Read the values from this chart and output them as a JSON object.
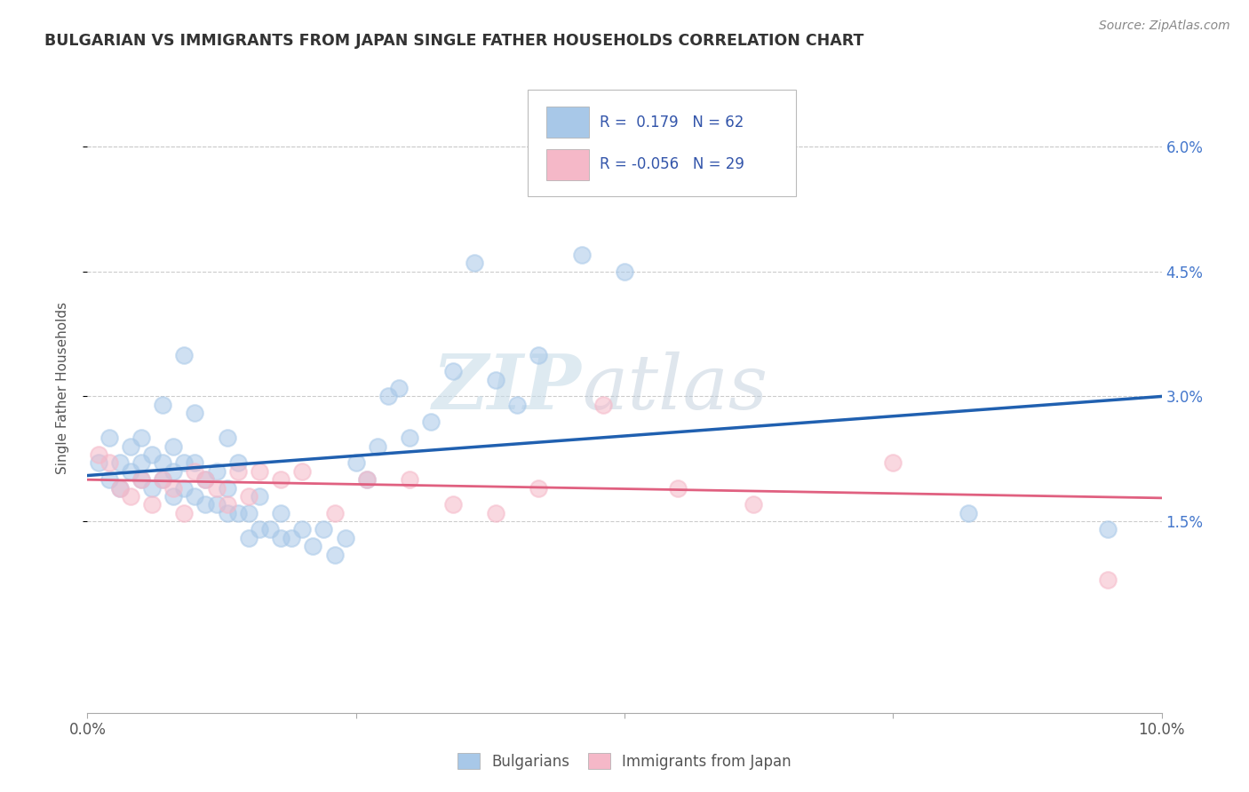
{
  "title": "BULGARIAN VS IMMIGRANTS FROM JAPAN SINGLE FATHER HOUSEHOLDS CORRELATION CHART",
  "source": "Source: ZipAtlas.com",
  "ylabel": "Single Father Households",
  "ytick_labels": [
    "1.5%",
    "3.0%",
    "4.5%",
    "6.0%"
  ],
  "ytick_values": [
    0.015,
    0.03,
    0.045,
    0.06
  ],
  "xlim": [
    0.0,
    0.1
  ],
  "ylim": [
    -0.008,
    0.07
  ],
  "legend_blue_R": "0.179",
  "legend_blue_N": "62",
  "legend_pink_R": "-0.056",
  "legend_pink_N": "29",
  "blue_color": "#a8c8e8",
  "pink_color": "#f5b8c8",
  "blue_line_color": "#2060b0",
  "pink_line_color": "#e06080",
  "watermark_zip": "ZIP",
  "watermark_atlas": "atlas",
  "blue_scatter_x": [
    0.001,
    0.002,
    0.002,
    0.003,
    0.003,
    0.004,
    0.004,
    0.005,
    0.005,
    0.005,
    0.006,
    0.006,
    0.007,
    0.007,
    0.007,
    0.008,
    0.008,
    0.008,
    0.009,
    0.009,
    0.009,
    0.01,
    0.01,
    0.01,
    0.011,
    0.011,
    0.012,
    0.012,
    0.013,
    0.013,
    0.013,
    0.014,
    0.014,
    0.015,
    0.015,
    0.016,
    0.016,
    0.017,
    0.018,
    0.018,
    0.019,
    0.02,
    0.021,
    0.022,
    0.023,
    0.024,
    0.025,
    0.026,
    0.027,
    0.028,
    0.029,
    0.03,
    0.032,
    0.034,
    0.036,
    0.038,
    0.04,
    0.042,
    0.046,
    0.05,
    0.082,
    0.095
  ],
  "blue_scatter_y": [
    0.022,
    0.02,
    0.025,
    0.019,
    0.022,
    0.021,
    0.024,
    0.02,
    0.022,
    0.025,
    0.019,
    0.023,
    0.02,
    0.022,
    0.029,
    0.018,
    0.021,
    0.024,
    0.019,
    0.022,
    0.035,
    0.018,
    0.022,
    0.028,
    0.017,
    0.02,
    0.017,
    0.021,
    0.016,
    0.019,
    0.025,
    0.016,
    0.022,
    0.013,
    0.016,
    0.014,
    0.018,
    0.014,
    0.013,
    0.016,
    0.013,
    0.014,
    0.012,
    0.014,
    0.011,
    0.013,
    0.022,
    0.02,
    0.024,
    0.03,
    0.031,
    0.025,
    0.027,
    0.033,
    0.046,
    0.032,
    0.029,
    0.035,
    0.047,
    0.045,
    0.016,
    0.014
  ],
  "pink_scatter_x": [
    0.001,
    0.002,
    0.003,
    0.004,
    0.005,
    0.006,
    0.007,
    0.008,
    0.009,
    0.01,
    0.011,
    0.012,
    0.013,
    0.014,
    0.015,
    0.016,
    0.018,
    0.02,
    0.023,
    0.026,
    0.03,
    0.034,
    0.038,
    0.042,
    0.048,
    0.055,
    0.062,
    0.075,
    0.095
  ],
  "pink_scatter_y": [
    0.023,
    0.022,
    0.019,
    0.018,
    0.02,
    0.017,
    0.02,
    0.019,
    0.016,
    0.021,
    0.02,
    0.019,
    0.017,
    0.021,
    0.018,
    0.021,
    0.02,
    0.021,
    0.016,
    0.02,
    0.02,
    0.017,
    0.016,
    0.019,
    0.029,
    0.019,
    0.017,
    0.022,
    0.008
  ],
  "blue_line_y_start": 0.0205,
  "blue_line_y_end": 0.03,
  "pink_line_y_start": 0.02,
  "pink_line_y_end": 0.0178,
  "xticks": [
    0.0,
    0.025,
    0.05,
    0.075,
    0.1
  ],
  "xtick_labels": [
    "0.0%",
    "",
    "",
    "",
    "10.0%"
  ]
}
